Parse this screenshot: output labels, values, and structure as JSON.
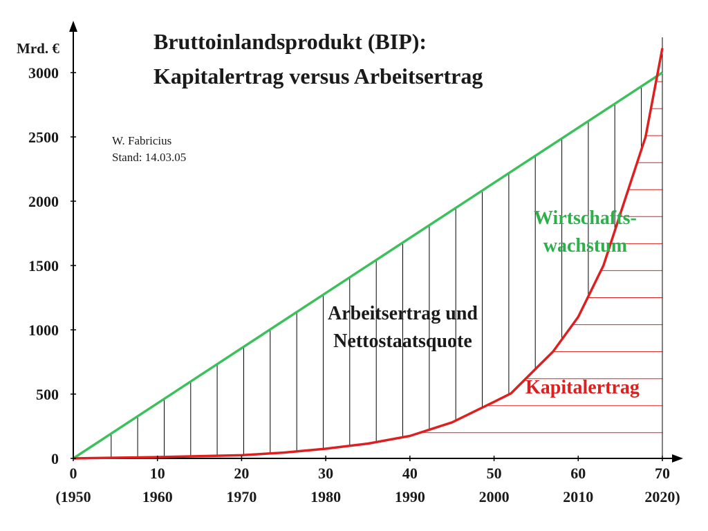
{
  "chart_data": {
    "type": "line",
    "title": "Bruttoinlandsprodukt (BIP):",
    "subtitle": "Kapitalertrag versus Arbeitsertrag",
    "ylabel": "Mrd. €",
    "ylim": [
      0,
      3000
    ],
    "xlim": [
      0,
      70
    ],
    "grid": false,
    "x_ticks": [
      {
        "value": 0,
        "label": "0",
        "year": "(1950"
      },
      {
        "value": 10,
        "label": "10",
        "year": "1960"
      },
      {
        "value": 20,
        "label": "20",
        "year": "1970"
      },
      {
        "value": 30,
        "label": "30",
        "year": "1980"
      },
      {
        "value": 40,
        "label": "40",
        "year": "1990"
      },
      {
        "value": 50,
        "label": "50",
        "year": "2000"
      },
      {
        "value": 60,
        "label": "60",
        "year": "2010"
      },
      {
        "value": 70,
        "label": "70",
        "year": "2020)"
      }
    ],
    "y_ticks": [
      0,
      500,
      1000,
      1500,
      2000,
      2500,
      3000
    ],
    "series": [
      {
        "name": "Wirtschafts-wachstum",
        "color": "#3cc05c",
        "x": [
          0,
          70
        ],
        "y": [
          0,
          3000
        ]
      },
      {
        "name": "Kapitalertrag",
        "color": "#dd1f1f",
        "x": [
          0,
          10,
          20,
          25,
          30,
          35,
          40,
          45,
          50,
          52,
          55,
          57,
          60,
          63,
          65,
          68,
          70
        ],
        "y": [
          0,
          10,
          25,
          45,
          75,
          115,
          175,
          280,
          440,
          505,
          700,
          830,
          1100,
          1500,
          1900,
          2500,
          3190
        ]
      }
    ],
    "annotations": [
      {
        "text_lines": [
          "Arbeitsertrag und",
          "Nettostaatsquote"
        ],
        "color": "#1a1a1a"
      },
      {
        "text_lines": [
          "Wirtschafts-",
          "wachstum"
        ],
        "color": "#2db04a"
      },
      {
        "text_lines": [
          "Kapitalertrag"
        ],
        "color": "#dd1f1f"
      }
    ],
    "hatch": {
      "vertical_between": [
        "Kapitalertrag",
        "Wirtschafts-wachstum"
      ],
      "vertical_color": "#000000",
      "horizontal_color": "#dd1f1f"
    }
  },
  "note": {
    "author": "W. Fabricius",
    "date": "Stand: 14.03.05"
  }
}
